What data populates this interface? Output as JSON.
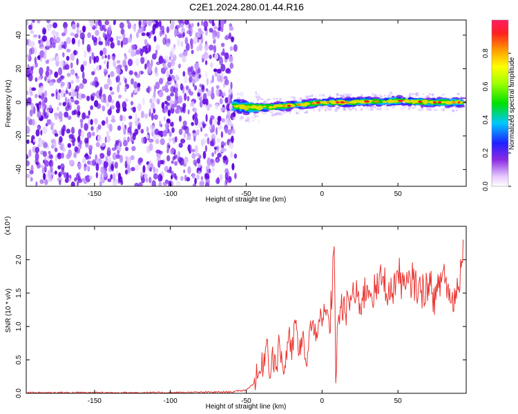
{
  "title": "C2E1.2024.280.01.44.R16",
  "chart_data": [
    {
      "type": "heatmap",
      "xlabel": "Height of straight line (km)",
      "ylabel": "Frequency (Hz)",
      "xlim": [
        -195,
        95
      ],
      "ylim": [
        -50,
        49
      ],
      "xticks": [
        -150,
        -100,
        -50,
        0,
        50
      ],
      "yticks": [
        -40,
        -20,
        0,
        20,
        40
      ],
      "noise_region_x": [
        -195,
        -57
      ],
      "signal_track": {
        "x": [
          -58,
          -50,
          -40,
          -30,
          -20,
          -10,
          0,
          10,
          20,
          30,
          40,
          50,
          60,
          70,
          80,
          93
        ],
        "y": [
          -2,
          -3,
          -3,
          -2.5,
          -2,
          -1,
          0,
          0,
          0,
          0.5,
          0.5,
          1,
          0.5,
          0,
          0,
          0
        ]
      },
      "colorbar": {
        "label": "Normalized spectral amplitude",
        "ticks": [
          0.0,
          0.2,
          0.4,
          0.6,
          0.8
        ],
        "range": [
          0,
          1
        ]
      },
      "grid": false
    },
    {
      "type": "line",
      "xlabel": "Height of straight line (km)",
      "ylabel": "SNR (10 * v/v)",
      "multiplier_label": "(x10⁴)",
      "xlim": [
        -195,
        95
      ],
      "ylim": [
        0,
        2.5
      ],
      "xticks": [
        -150,
        -100,
        -50,
        0,
        50
      ],
      "yticks": [
        0.0,
        0.5,
        1.0,
        1.5,
        2.0
      ],
      "series": [
        {
          "color": "#e8322e",
          "x": [
            -195,
            -150,
            -100,
            -60,
            -50,
            -45,
            -40,
            -36,
            -35,
            -33,
            -30,
            -28,
            -25,
            -22,
            -20,
            -18,
            -15,
            -12,
            -10,
            -8,
            -5,
            -2,
            0,
            3,
            5,
            8,
            9,
            10,
            12,
            15,
            20,
            25,
            30,
            35,
            40,
            45,
            50,
            55,
            60,
            65,
            70,
            75,
            80,
            85,
            90,
            93
          ],
          "y": [
            0.01,
            0.01,
            0.01,
            0.02,
            0.05,
            0.15,
            0.35,
            0.8,
            0.3,
            0.6,
            0.4,
            0.75,
            0.3,
            0.9,
            0.5,
            1.1,
            0.6,
            0.8,
            0.4,
            1.0,
            0.9,
            1.1,
            1.0,
            1.25,
            0.9,
            2.2,
            0.15,
            1.0,
            1.3,
            1.2,
            1.5,
            1.35,
            1.6,
            1.5,
            1.75,
            1.45,
            1.8,
            1.55,
            1.7,
            1.5,
            1.65,
            1.4,
            1.85,
            1.35,
            1.6,
            2.3
          ]
        }
      ],
      "grid": false
    }
  ]
}
